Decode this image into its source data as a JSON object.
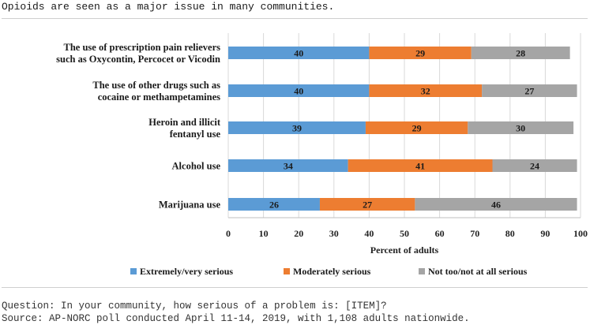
{
  "title": "Opioids are seen as a major issue in many communities.",
  "colors": {
    "extremely": "#5b9bd5",
    "moderately": "#ed7d31",
    "not_too": "#a5a5a5",
    "grid": "#d9d9d9",
    "axis": "#bfbfbf"
  },
  "chart_data": {
    "type": "bar",
    "orientation": "horizontal",
    "stacked": true,
    "categories": [
      [
        "The use of prescription pain relievers",
        "such as Oxycontin, Percocet or Vicodin"
      ],
      [
        "The use of other drugs such as",
        "cocaine or methampetamines"
      ],
      [
        "Heroin and illicit",
        "fentanyl use"
      ],
      [
        "Alcohol use"
      ],
      [
        "Marijuana use"
      ]
    ],
    "series": [
      {
        "name": "Extremely/very serious",
        "color_key": "extremely",
        "values": [
          40,
          40,
          39,
          34,
          26
        ]
      },
      {
        "name": "Moderately serious",
        "color_key": "moderately",
        "values": [
          29,
          32,
          29,
          41,
          27
        ]
      },
      {
        "name": "Not too/not at all serious",
        "color_key": "not_too",
        "values": [
          28,
          27,
          30,
          24,
          46
        ]
      }
    ],
    "xlabel": "Percent of adults",
    "xlim": [
      0,
      100
    ],
    "xticks": [
      0,
      10,
      20,
      30,
      40,
      50,
      60,
      70,
      80,
      90,
      100
    ],
    "grid": "vertical",
    "legend_position": "bottom"
  },
  "footer": {
    "question": "Question: In your community, how serious of a problem is: [ITEM]?",
    "source": "Source: AP-NORC poll conducted April 11-14, 2019, with 1,108 adults nationwide."
  }
}
